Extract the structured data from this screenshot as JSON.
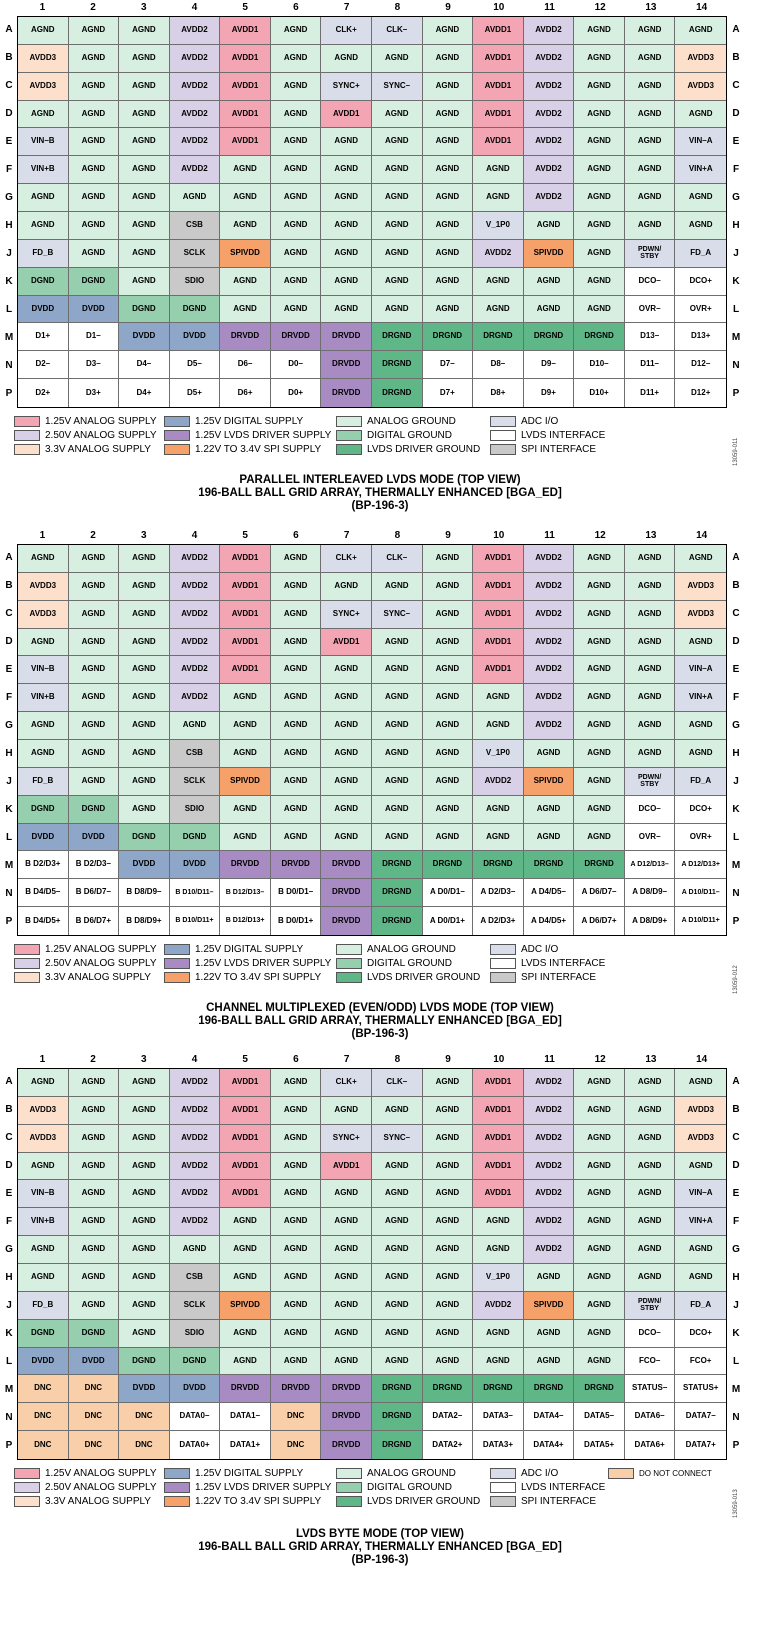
{
  "colors": {
    "1.25V ANALOG SUPPLY": "#f4a5b4",
    "2.50V ANALOG SUPPLY": "#d8d0e6",
    "3.3V ANALOG SUPPLY": "#fde0cc",
    "1.25V DIGITAL SUPPLY": "#8ea6c8",
    "1.25V LVDS DRIVER SUPPLY": "#a98bc4",
    "1.22V TO 3.4V SPI SUPPLY": "#f6a06a",
    "ANALOG GROUND": "#d6efe1",
    "DIGITAL GROUND": "#95cfae",
    "LVDS DRIVER GROUND": "#5fb687",
    "ADC I/O": "#d9dde9",
    "LVDS INTERFACE": "#ffffff",
    "SPI INTERFACE": "#c9c9c9",
    "DO NOT CONNECT": "#f9cfa9"
  },
  "legend_labels": {
    "a1": "1.25V ANALOG SUPPLY",
    "a2": "2.50V ANALOG SUPPLY",
    "a3": "3.3V ANALOG SUPPLY",
    "d1": "1.25V DIGITAL SUPPLY",
    "d2": "1.25V LVDS DRIVER SUPPLY",
    "d3": "1.22V TO 3.4V SPI SUPPLY",
    "g1": "ANALOG GROUND",
    "g2": "DIGITAL GROUND",
    "g3": "LVDS DRIVER GROUND",
    "i1": "ADC I/O",
    "i2": "LVDS INTERFACE",
    "i3": "SPI INTERFACE",
    "dnc": "DO NOT CONNECT"
  },
  "columns": [
    "1",
    "2",
    "3",
    "4",
    "5",
    "6",
    "7",
    "8",
    "9",
    "10",
    "11",
    "12",
    "13",
    "14"
  ],
  "rows": [
    "A",
    "B",
    "C",
    "D",
    "E",
    "F",
    "G",
    "H",
    "J",
    "K",
    "L",
    "M",
    "N",
    "P"
  ],
  "common_rows": {
    "A": [
      [
        "AGND",
        "g1"
      ],
      [
        "AGND",
        "g1"
      ],
      [
        "AGND",
        "g1"
      ],
      [
        "AVDD2",
        "a2"
      ],
      [
        "AVDD1",
        "a1"
      ],
      [
        "AGND",
        "g1"
      ],
      [
        "CLK+",
        "i1"
      ],
      [
        "CLK–",
        "i1"
      ],
      [
        "AGND",
        "g1"
      ],
      [
        "AVDD1",
        "a1"
      ],
      [
        "AVDD2",
        "a2"
      ],
      [
        "AGND",
        "g1"
      ],
      [
        "AGND",
        "g1"
      ],
      [
        "AGND",
        "g1"
      ]
    ],
    "B": [
      [
        "AVDD3",
        "a3"
      ],
      [
        "AGND",
        "g1"
      ],
      [
        "AGND",
        "g1"
      ],
      [
        "AVDD2",
        "a2"
      ],
      [
        "AVDD1",
        "a1"
      ],
      [
        "AGND",
        "g1"
      ],
      [
        "AGND",
        "g1"
      ],
      [
        "AGND",
        "g1"
      ],
      [
        "AGND",
        "g1"
      ],
      [
        "AVDD1",
        "a1"
      ],
      [
        "AVDD2",
        "a2"
      ],
      [
        "AGND",
        "g1"
      ],
      [
        "AGND",
        "g1"
      ],
      [
        "AVDD3",
        "a3"
      ]
    ],
    "C": [
      [
        "AVDD3",
        "a3"
      ],
      [
        "AGND",
        "g1"
      ],
      [
        "AGND",
        "g1"
      ],
      [
        "AVDD2",
        "a2"
      ],
      [
        "AVDD1",
        "a1"
      ],
      [
        "AGND",
        "g1"
      ],
      [
        "SYNC+",
        "i1"
      ],
      [
        "SYNC–",
        "i1"
      ],
      [
        "AGND",
        "g1"
      ],
      [
        "AVDD1",
        "a1"
      ],
      [
        "AVDD2",
        "a2"
      ],
      [
        "AGND",
        "g1"
      ],
      [
        "AGND",
        "g1"
      ],
      [
        "AVDD3",
        "a3"
      ]
    ],
    "D": [
      [
        "AGND",
        "g1"
      ],
      [
        "AGND",
        "g1"
      ],
      [
        "AGND",
        "g1"
      ],
      [
        "AVDD2",
        "a2"
      ],
      [
        "AVDD1",
        "a1"
      ],
      [
        "AGND",
        "g1"
      ],
      [
        "AVDD1",
        "a1"
      ],
      [
        "AGND",
        "g1"
      ],
      [
        "AGND",
        "g1"
      ],
      [
        "AVDD1",
        "a1"
      ],
      [
        "AVDD2",
        "a2"
      ],
      [
        "AGND",
        "g1"
      ],
      [
        "AGND",
        "g1"
      ],
      [
        "AGND",
        "g1"
      ]
    ],
    "E": [
      [
        "VIN–B",
        "i1"
      ],
      [
        "AGND",
        "g1"
      ],
      [
        "AGND",
        "g1"
      ],
      [
        "AVDD2",
        "a2"
      ],
      [
        "AVDD1",
        "a1"
      ],
      [
        "AGND",
        "g1"
      ],
      [
        "AGND",
        "g1"
      ],
      [
        "AGND",
        "g1"
      ],
      [
        "AGND",
        "g1"
      ],
      [
        "AVDD1",
        "a1"
      ],
      [
        "AVDD2",
        "a2"
      ],
      [
        "AGND",
        "g1"
      ],
      [
        "AGND",
        "g1"
      ],
      [
        "VIN–A",
        "i1"
      ]
    ],
    "F": [
      [
        "VIN+B",
        "i1"
      ],
      [
        "AGND",
        "g1"
      ],
      [
        "AGND",
        "g1"
      ],
      [
        "AVDD2",
        "a2"
      ],
      [
        "AGND",
        "g1"
      ],
      [
        "AGND",
        "g1"
      ],
      [
        "AGND",
        "g1"
      ],
      [
        "AGND",
        "g1"
      ],
      [
        "AGND",
        "g1"
      ],
      [
        "AGND",
        "g1"
      ],
      [
        "AVDD2",
        "a2"
      ],
      [
        "AGND",
        "g1"
      ],
      [
        "AGND",
        "g1"
      ],
      [
        "VIN+A",
        "i1"
      ]
    ],
    "G": [
      [
        "AGND",
        "g1"
      ],
      [
        "AGND",
        "g1"
      ],
      [
        "AGND",
        "g1"
      ],
      [
        "AGND",
        "g1"
      ],
      [
        "AGND",
        "g1"
      ],
      [
        "AGND",
        "g1"
      ],
      [
        "AGND",
        "g1"
      ],
      [
        "AGND",
        "g1"
      ],
      [
        "AGND",
        "g1"
      ],
      [
        "AGND",
        "g1"
      ],
      [
        "AVDD2",
        "a2"
      ],
      [
        "AGND",
        "g1"
      ],
      [
        "AGND",
        "g1"
      ],
      [
        "AGND",
        "g1"
      ]
    ],
    "H": [
      [
        "AGND",
        "g1"
      ],
      [
        "AGND",
        "g1"
      ],
      [
        "AGND",
        "g1"
      ],
      [
        "CSB",
        "i3"
      ],
      [
        "AGND",
        "g1"
      ],
      [
        "AGND",
        "g1"
      ],
      [
        "AGND",
        "g1"
      ],
      [
        "AGND",
        "g1"
      ],
      [
        "AGND",
        "g1"
      ],
      [
        "V_1P0",
        "i1"
      ],
      [
        "AGND",
        "g1"
      ],
      [
        "AGND",
        "g1"
      ],
      [
        "AGND",
        "g1"
      ],
      [
        "AGND",
        "g1"
      ]
    ],
    "J": [
      [
        "FD_B",
        "i1"
      ],
      [
        "AGND",
        "g1"
      ],
      [
        "AGND",
        "g1"
      ],
      [
        "SCLK",
        "i3"
      ],
      [
        "SPIVDD",
        "d3"
      ],
      [
        "AGND",
        "g1"
      ],
      [
        "AGND",
        "g1"
      ],
      [
        "AGND",
        "g1"
      ],
      [
        "AGND",
        "g1"
      ],
      [
        "AVDD2",
        "a2"
      ],
      [
        "SPIVDD",
        "d3"
      ],
      [
        "AGND",
        "g1"
      ],
      [
        "PDWN/\nSTBY",
        "i1"
      ],
      [
        "FD_A",
        "i1"
      ]
    ],
    "K": [
      [
        "DGND",
        "g2"
      ],
      [
        "DGND",
        "g2"
      ],
      [
        "AGND",
        "g1"
      ],
      [
        "SDIO",
        "i3"
      ],
      [
        "AGND",
        "g1"
      ],
      [
        "AGND",
        "g1"
      ],
      [
        "AGND",
        "g1"
      ],
      [
        "AGND",
        "g1"
      ],
      [
        "AGND",
        "g1"
      ],
      [
        "AGND",
        "g1"
      ],
      [
        "AGND",
        "g1"
      ],
      [
        "AGND",
        "g1"
      ]
    ]
  },
  "diagrams": [
    {
      "caption_lines": [
        "PARALLEL INTERLEAVED LVDS MODE (TOP VIEW)",
        "196-BALL BALL GRID ARRAY, THERMALLY ENHANCED [BGA_ED]",
        "(BP-196-3)"
      ],
      "figure_id": "13059-011",
      "show_dnc_legend": false,
      "K_tail": [
        [
          "DCO–",
          "i2"
        ],
        [
          "DCO+",
          "i2"
        ]
      ],
      "L": [
        [
          "DVDD",
          "d1"
        ],
        [
          "DVDD",
          "d1"
        ],
        [
          "DGND",
          "g2"
        ],
        [
          "DGND",
          "g2"
        ],
        [
          "AGND",
          "g1"
        ],
        [
          "AGND",
          "g1"
        ],
        [
          "AGND",
          "g1"
        ],
        [
          "AGND",
          "g1"
        ],
        [
          "AGND",
          "g1"
        ],
        [
          "AGND",
          "g1"
        ],
        [
          "AGND",
          "g1"
        ],
        [
          "AGND",
          "g1"
        ],
        [
          "OVR–",
          "i2"
        ],
        [
          "OVR+",
          "i2"
        ]
      ],
      "M": [
        [
          "D1+",
          "i2"
        ],
        [
          "D1–",
          "i2"
        ],
        [
          "DVDD",
          "d1"
        ],
        [
          "DVDD",
          "d1"
        ],
        [
          "DRVDD",
          "d2"
        ],
        [
          "DRVDD",
          "d2"
        ],
        [
          "DRVDD",
          "d2"
        ],
        [
          "DRGND",
          "g3"
        ],
        [
          "DRGND",
          "g3"
        ],
        [
          "DRGND",
          "g3"
        ],
        [
          "DRGND",
          "g3"
        ],
        [
          "DRGND",
          "g3"
        ],
        [
          "D13–",
          "i2"
        ],
        [
          "D13+",
          "i2"
        ]
      ],
      "N": [
        [
          "D2–",
          "i2"
        ],
        [
          "D3–",
          "i2"
        ],
        [
          "D4–",
          "i2"
        ],
        [
          "D5–",
          "i2"
        ],
        [
          "D6–",
          "i2"
        ],
        [
          "D0–",
          "i2"
        ],
        [
          "DRVDD",
          "d2"
        ],
        [
          "DRGND",
          "g3"
        ],
        [
          "D7–",
          "i2"
        ],
        [
          "D8–",
          "i2"
        ],
        [
          "D9–",
          "i2"
        ],
        [
          "D10–",
          "i2"
        ],
        [
          "D11–",
          "i2"
        ],
        [
          "D12–",
          "i2"
        ]
      ],
      "P": [
        [
          "D2+",
          "i2"
        ],
        [
          "D3+",
          "i2"
        ],
        [
          "D4+",
          "i2"
        ],
        [
          "D5+",
          "i2"
        ],
        [
          "D6+",
          "i2"
        ],
        [
          "D0+",
          "i2"
        ],
        [
          "DRVDD",
          "d2"
        ],
        [
          "DRGND",
          "g3"
        ],
        [
          "D7+",
          "i2"
        ],
        [
          "D8+",
          "i2"
        ],
        [
          "D9+",
          "i2"
        ],
        [
          "D10+",
          "i2"
        ],
        [
          "D11+",
          "i2"
        ],
        [
          "D12+",
          "i2"
        ]
      ]
    },
    {
      "caption_lines": [
        "CHANNEL MULTIPLEXED (EVEN/ODD) LVDS MODE (TOP VIEW)",
        "196-BALL BALL GRID ARRAY, THERMALLY ENHANCED [BGA_ED]",
        "(BP-196-3)"
      ],
      "figure_id": "13059-012",
      "show_dnc_legend": false,
      "K_tail": [
        [
          "DCO–",
          "i2"
        ],
        [
          "DCO+",
          "i2"
        ]
      ],
      "L": [
        [
          "DVDD",
          "d1"
        ],
        [
          "DVDD",
          "d1"
        ],
        [
          "DGND",
          "g2"
        ],
        [
          "DGND",
          "g2"
        ],
        [
          "AGND",
          "g1"
        ],
        [
          "AGND",
          "g1"
        ],
        [
          "AGND",
          "g1"
        ],
        [
          "AGND",
          "g1"
        ],
        [
          "AGND",
          "g1"
        ],
        [
          "AGND",
          "g1"
        ],
        [
          "AGND",
          "g1"
        ],
        [
          "AGND",
          "g1"
        ],
        [
          "OVR–",
          "i2"
        ],
        [
          "OVR+",
          "i2"
        ]
      ],
      "M": [
        [
          "B D2/D3+",
          "i2"
        ],
        [
          "B D2/D3–",
          "i2"
        ],
        [
          "DVDD",
          "d1"
        ],
        [
          "DVDD",
          "d1"
        ],
        [
          "DRVDD",
          "d2"
        ],
        [
          "DRVDD",
          "d2"
        ],
        [
          "DRVDD",
          "d2"
        ],
        [
          "DRGND",
          "g3"
        ],
        [
          "DRGND",
          "g3"
        ],
        [
          "DRGND",
          "g3"
        ],
        [
          "DRGND",
          "g3"
        ],
        [
          "DRGND",
          "g3"
        ],
        [
          "A D12/D13–",
          "i2"
        ],
        [
          "A D12/D13+",
          "i2"
        ]
      ],
      "N": [
        [
          "B D4/D5–",
          "i2"
        ],
        [
          "B D6/D7–",
          "i2"
        ],
        [
          "B D8/D9–",
          "i2"
        ],
        [
          "B D10/D11–",
          "i2"
        ],
        [
          "B D12/D13–",
          "i2"
        ],
        [
          "B D0/D1–",
          "i2"
        ],
        [
          "DRVDD",
          "d2"
        ],
        [
          "DRGND",
          "g3"
        ],
        [
          "A D0/D1–",
          "i2"
        ],
        [
          "A D2/D3–",
          "i2"
        ],
        [
          "A D4/D5–",
          "i2"
        ],
        [
          "A D6/D7–",
          "i2"
        ],
        [
          "A D8/D9–",
          "i2"
        ],
        [
          "A D10/D11–",
          "i2"
        ]
      ],
      "P": [
        [
          "B D4/D5+",
          "i2"
        ],
        [
          "B D6/D7+",
          "i2"
        ],
        [
          "B D8/D9+",
          "i2"
        ],
        [
          "B D10/D11+",
          "i2"
        ],
        [
          "B D12/D13+",
          "i2"
        ],
        [
          "B D0/D1+",
          "i2"
        ],
        [
          "DRVDD",
          "d2"
        ],
        [
          "DRGND",
          "g3"
        ],
        [
          "A D0/D1+",
          "i2"
        ],
        [
          "A D2/D3+",
          "i2"
        ],
        [
          "A D4/D5+",
          "i2"
        ],
        [
          "A D6/D7+",
          "i2"
        ],
        [
          "A D8/D9+",
          "i2"
        ],
        [
          "A D10/D11+",
          "i2"
        ]
      ]
    },
    {
      "caption_lines": [
        "LVDS BYTE MODE (TOP VIEW)",
        "196-BALL BALL GRID ARRAY, THERMALLY ENHANCED [BGA_ED]",
        "(BP-196-3)"
      ],
      "figure_id": "13059-013",
      "show_dnc_legend": true,
      "K_tail": [
        [
          "DCO–",
          "i2"
        ],
        [
          "DCO+",
          "i2"
        ]
      ],
      "L": [
        [
          "DVDD",
          "d1"
        ],
        [
          "DVDD",
          "d1"
        ],
        [
          "DGND",
          "g2"
        ],
        [
          "DGND",
          "g2"
        ],
        [
          "AGND",
          "g1"
        ],
        [
          "AGND",
          "g1"
        ],
        [
          "AGND",
          "g1"
        ],
        [
          "AGND",
          "g1"
        ],
        [
          "AGND",
          "g1"
        ],
        [
          "AGND",
          "g1"
        ],
        [
          "AGND",
          "g1"
        ],
        [
          "AGND",
          "g1"
        ],
        [
          "FCO–",
          "i2"
        ],
        [
          "FCO+",
          "i2"
        ]
      ],
      "M": [
        [
          "DNC",
          "dnc"
        ],
        [
          "DNC",
          "dnc"
        ],
        [
          "DVDD",
          "d1"
        ],
        [
          "DVDD",
          "d1"
        ],
        [
          "DRVDD",
          "d2"
        ],
        [
          "DRVDD",
          "d2"
        ],
        [
          "DRVDD",
          "d2"
        ],
        [
          "DRGND",
          "g3"
        ],
        [
          "DRGND",
          "g3"
        ],
        [
          "DRGND",
          "g3"
        ],
        [
          "DRGND",
          "g3"
        ],
        [
          "DRGND",
          "g3"
        ],
        [
          "STATUS–",
          "i2"
        ],
        [
          "STATUS+",
          "i2"
        ]
      ],
      "N": [
        [
          "DNC",
          "dnc"
        ],
        [
          "DNC",
          "dnc"
        ],
        [
          "DNC",
          "dnc"
        ],
        [
          "DATA0–",
          "i2"
        ],
        [
          "DATA1–",
          "i2"
        ],
        [
          "DNC",
          "dnc"
        ],
        [
          "DRVDD",
          "d2"
        ],
        [
          "DRGND",
          "g3"
        ],
        [
          "DATA2–",
          "i2"
        ],
        [
          "DATA3–",
          "i2"
        ],
        [
          "DATA4–",
          "i2"
        ],
        [
          "DATA5–",
          "i2"
        ],
        [
          "DATA6–",
          "i2"
        ],
        [
          "DATA7–",
          "i2"
        ]
      ],
      "P": [
        [
          "DNC",
          "dnc"
        ],
        [
          "DNC",
          "dnc"
        ],
        [
          "DNC",
          "dnc"
        ],
        [
          "DATA0+",
          "i2"
        ],
        [
          "DATA1+",
          "i2"
        ],
        [
          "DNC",
          "dnc"
        ],
        [
          "DRVDD",
          "d2"
        ],
        [
          "DRGND",
          "g3"
        ],
        [
          "DATA2+",
          "i2"
        ],
        [
          "DATA3+",
          "i2"
        ],
        [
          "DATA4+",
          "i2"
        ],
        [
          "DATA5+",
          "i2"
        ],
        [
          "DATA6+",
          "i2"
        ],
        [
          "DATA7+",
          "i2"
        ]
      ]
    }
  ]
}
